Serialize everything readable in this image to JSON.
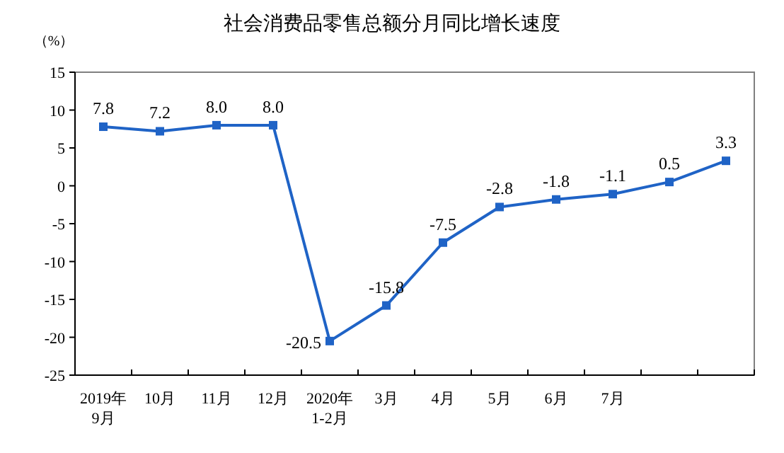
{
  "chart_data": {
    "type": "line",
    "title": "社会消费品零售总额分月同比增长速度",
    "ylabel": "（%）",
    "categories": [
      "2019年\n9月",
      "10月",
      "11月",
      "12月",
      "2020年\n1-2月",
      "3月",
      "4月",
      "5月",
      "6月",
      "7月",
      null,
      null
    ],
    "series": [
      {
        "color": "#1f63c6",
        "values": [
          7.8,
          7.2,
          8.0,
          8.0,
          -20.5,
          -15.8,
          -7.5,
          -2.8,
          -1.8,
          -1.1,
          0.5,
          3.3
        ]
      }
    ],
    "value_labels": [
      "7.8",
      "7.2",
      "8.0",
      "8.0",
      "-20.5",
      "-15.8",
      "-7.5",
      "-2.8",
      "-1.8",
      "-1.1",
      "0.5",
      "3.3"
    ],
    "ylim": [
      -25,
      15
    ],
    "yticks": [
      -25,
      -20,
      -15,
      -10,
      -5,
      0,
      5,
      10,
      15
    ],
    "marker": "square",
    "grid": false
  }
}
